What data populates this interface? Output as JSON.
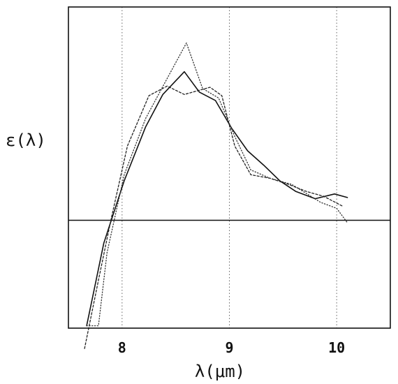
{
  "chart_data": {
    "type": "line",
    "title": "",
    "xlabel": "λ(μm)",
    "ylabel": "ε(λ)",
    "xlim": [
      7.5,
      10.5
    ],
    "ylim": [
      -0.9,
      1.78
    ],
    "xticks": [
      8,
      9,
      10
    ],
    "xtick_labels": [
      "8",
      "9",
      "10"
    ],
    "grid": "vertical dotted lines at x ticks",
    "zero_line": 0,
    "series": [
      {
        "style": "solid",
        "color": "#111111",
        "x": [
          7.67,
          7.83,
          8.02,
          8.22,
          8.38,
          8.58,
          8.72,
          8.87,
          9.02,
          9.17,
          9.32,
          9.47,
          9.62,
          9.8,
          9.98,
          10.1
        ],
        "y": [
          -0.88,
          -0.19,
          0.33,
          0.78,
          1.05,
          1.24,
          1.07,
          1.0,
          0.77,
          0.58,
          0.46,
          0.33,
          0.24,
          0.18,
          0.22,
          0.19
        ]
      },
      {
        "style": "dotted",
        "color": "#333333",
        "x": [
          7.67,
          7.78,
          7.86,
          8.02,
          8.22,
          8.4,
          8.6,
          8.75,
          8.9,
          9.05,
          9.2,
          9.38,
          9.58,
          9.85,
          10.0,
          10.1
        ],
        "y": [
          -0.88,
          -0.88,
          -0.27,
          0.38,
          0.85,
          1.15,
          1.48,
          1.1,
          1.02,
          0.7,
          0.42,
          0.35,
          0.3,
          0.15,
          0.1,
          -0.02
        ]
      },
      {
        "style": "dashed",
        "color": "#222222",
        "x": [
          7.65,
          7.78,
          7.9,
          8.05,
          8.25,
          8.42,
          8.58,
          8.7,
          8.82,
          8.93,
          9.05,
          9.2,
          9.38,
          9.55,
          9.72,
          9.88,
          10.05
        ],
        "y": [
          -1.07,
          -0.5,
          0.02,
          0.62,
          1.04,
          1.12,
          1.05,
          1.08,
          1.11,
          1.04,
          0.62,
          0.38,
          0.35,
          0.3,
          0.24,
          0.2,
          0.12
        ]
      }
    ]
  }
}
